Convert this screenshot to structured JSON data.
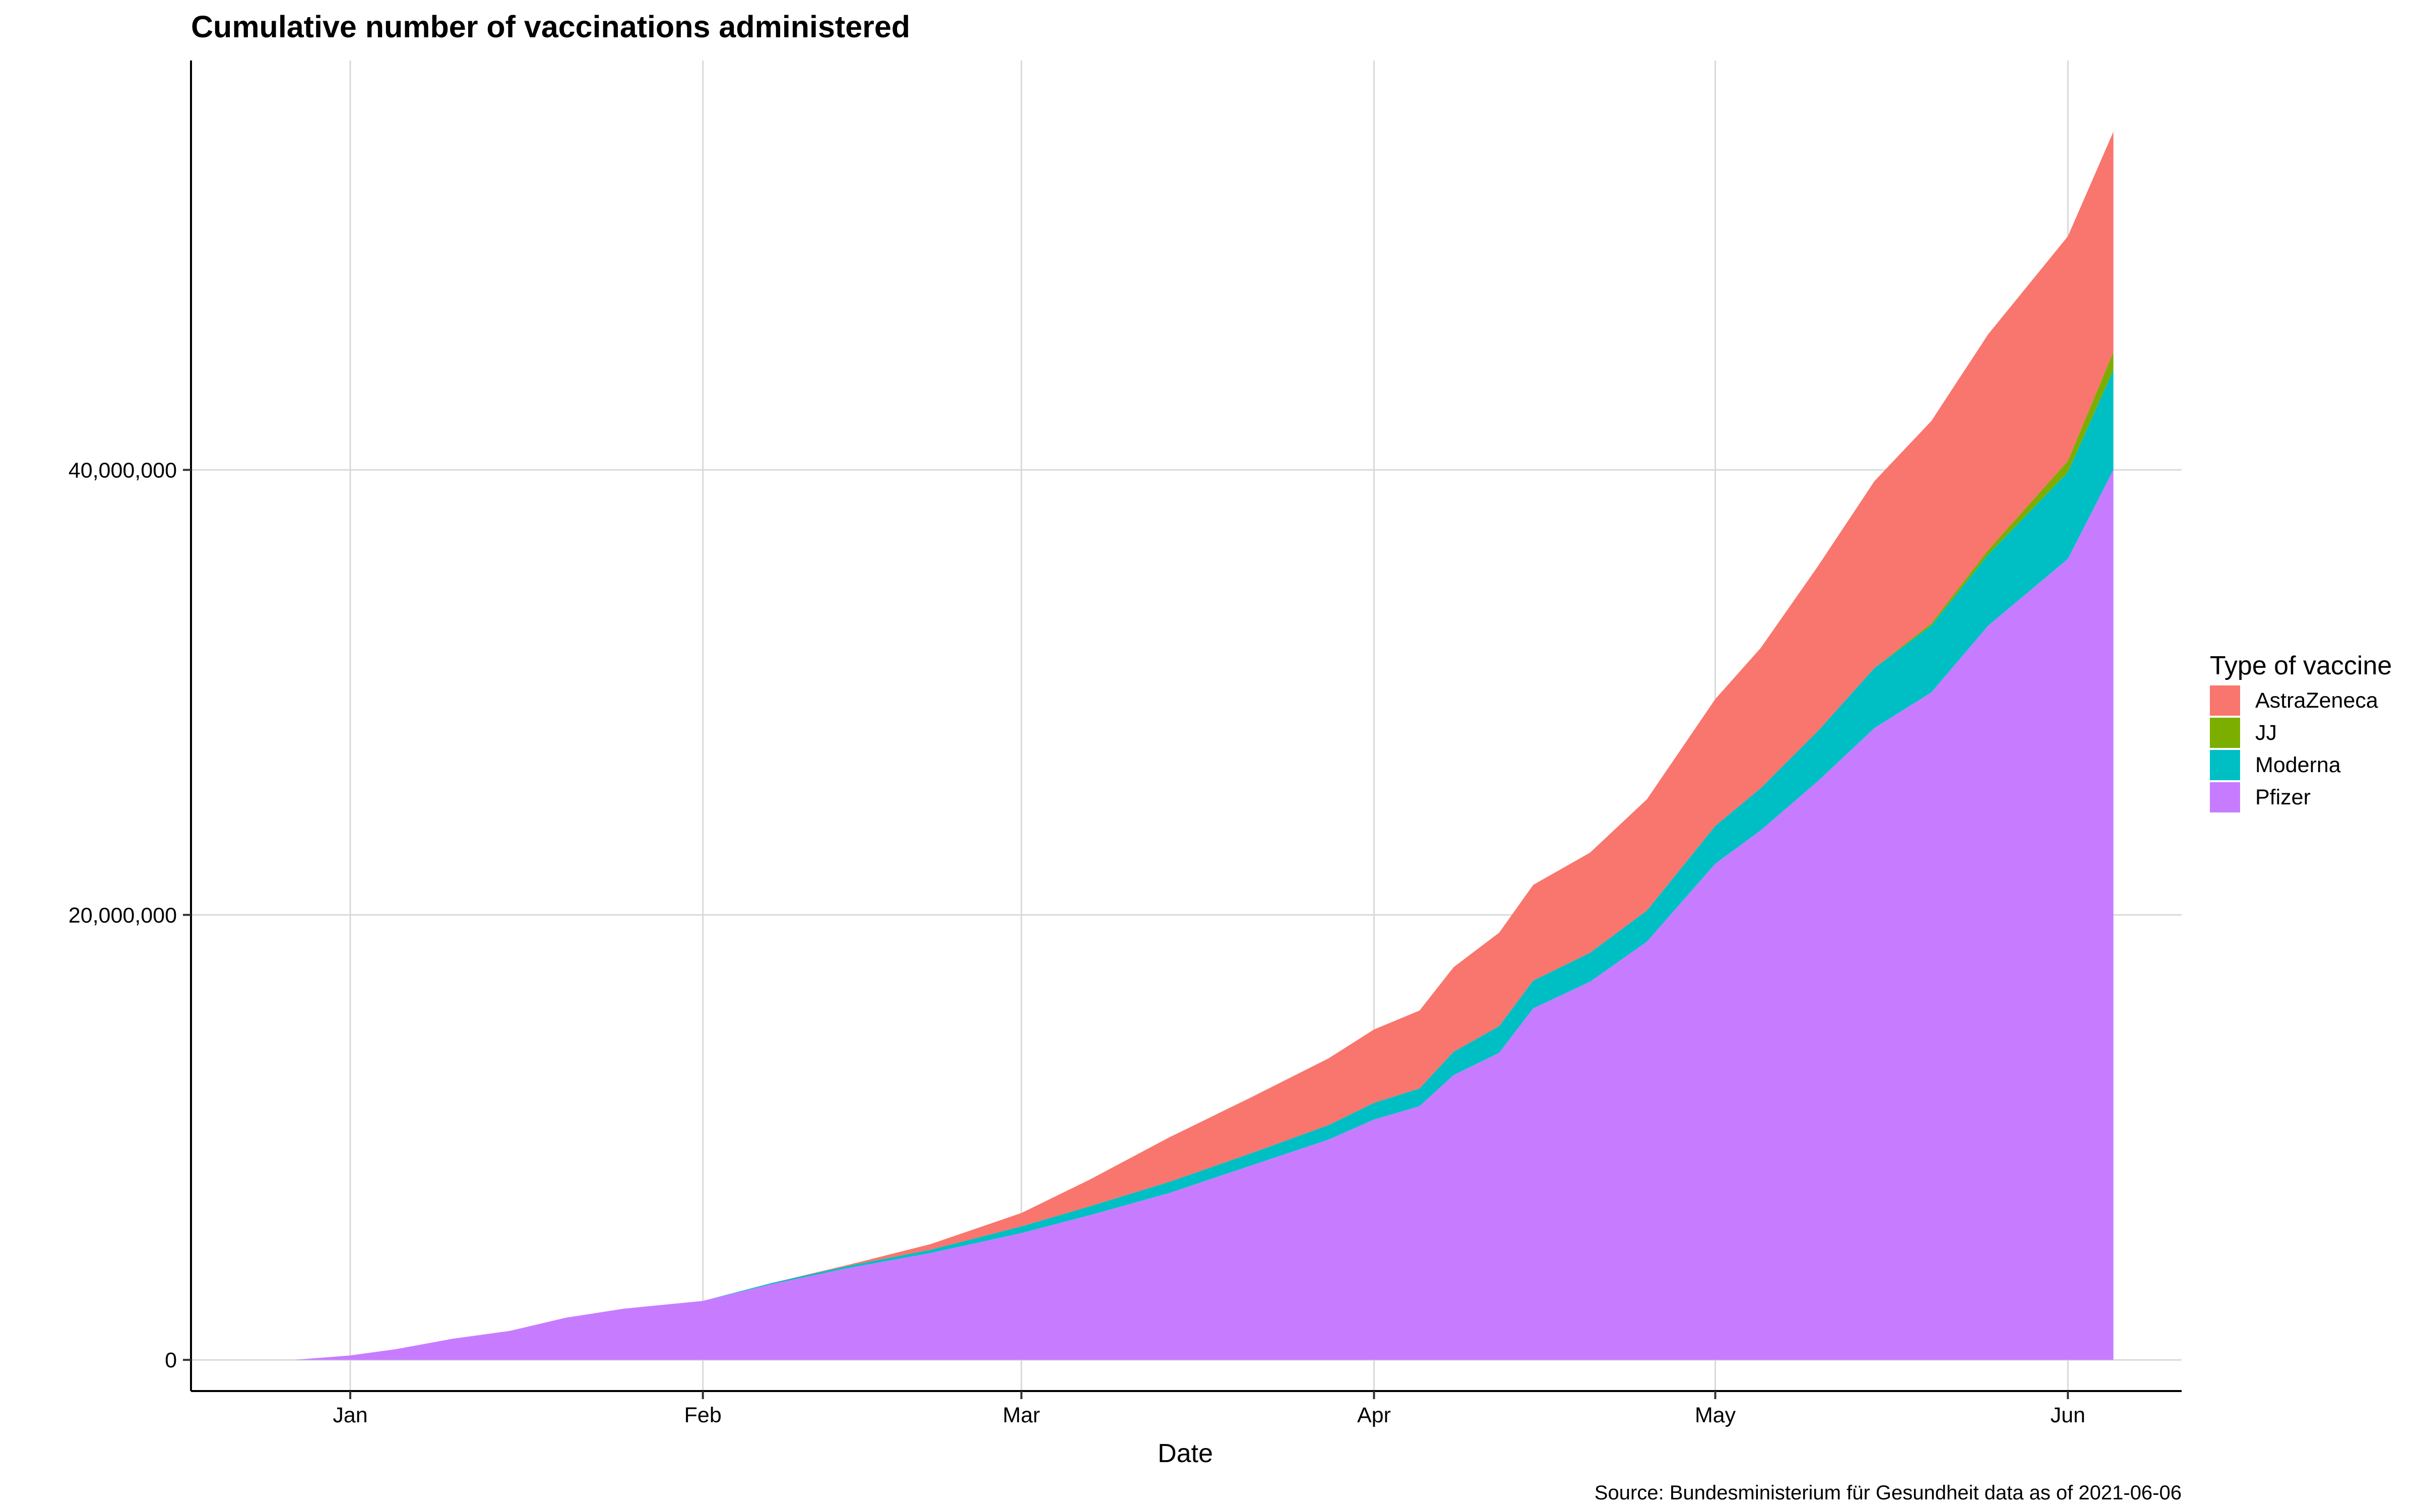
{
  "chart_data": {
    "type": "area",
    "stacked": true,
    "title": "Cumulative number of vaccinations administered",
    "xlabel": "Date",
    "ylabel": "",
    "caption": "Source: Bundesministerium für Gesundheit data as of 2021-06-06",
    "x_range": [
      "2020-12-18",
      "2021-06-11"
    ],
    "ylim": [
      -1400000,
      58400000
    ],
    "x_ticks": [
      {
        "date": "2021-01-01",
        "label": "Jan"
      },
      {
        "date": "2021-02-01",
        "label": "Feb"
      },
      {
        "date": "2021-03-01",
        "label": "Mar"
      },
      {
        "date": "2021-04-01",
        "label": "Apr"
      },
      {
        "date": "2021-05-01",
        "label": "May"
      },
      {
        "date": "2021-06-01",
        "label": "Jun"
      }
    ],
    "y_ticks": [
      {
        "value": 0,
        "label": "0"
      },
      {
        "value": 20000000,
        "label": "20,000,000"
      },
      {
        "value": 40000000,
        "label": "40,000,000"
      }
    ],
    "grid": true,
    "legend": {
      "title": "Type of vaccine",
      "position": "right",
      "entries": [
        {
          "name": "AstraZeneca",
          "color": "#F8766D"
        },
        {
          "name": "JJ",
          "color": "#7CAE00"
        },
        {
          "name": "Moderna",
          "color": "#00BFC4"
        },
        {
          "name": "Pfizer",
          "color": "#C77CFF"
        }
      ]
    },
    "dates": [
      "2020-12-27",
      "2021-01-01",
      "2021-01-05",
      "2021-01-10",
      "2021-01-15",
      "2021-01-20",
      "2021-01-25",
      "2021-02-01",
      "2021-02-07",
      "2021-02-14",
      "2021-02-21",
      "2021-03-01",
      "2021-03-07",
      "2021-03-14",
      "2021-03-21",
      "2021-03-28",
      "2021-04-01",
      "2021-04-05",
      "2021-04-08",
      "2021-04-12",
      "2021-04-15",
      "2021-04-20",
      "2021-04-25",
      "2021-05-01",
      "2021-05-05",
      "2021-05-10",
      "2021-05-15",
      "2021-05-20",
      "2021-05-25",
      "2021-06-01",
      "2021-06-05"
    ],
    "series": [
      {
        "name": "Pfizer",
        "color": "#C77CFF",
        "values": [
          0,
          200000,
          480000,
          950000,
          1300000,
          1900000,
          2300000,
          2650000,
          3400000,
          4150000,
          4800000,
          5700000,
          6500000,
          7500000,
          8700000,
          9900000,
          10800000,
          11400000,
          12800000,
          13800000,
          15800000,
          17000000,
          18800000,
          22300000,
          23800000,
          26000000,
          28400000,
          30000000,
          33000000,
          36000000,
          40000000
        ]
      },
      {
        "name": "Moderna",
        "color": "#00BFC4",
        "values": [
          0,
          0,
          0,
          0,
          0,
          0,
          0,
          0,
          50000,
          100000,
          150000,
          300000,
          400000,
          500000,
          550000,
          650000,
          750000,
          800000,
          1050000,
          1200000,
          1250000,
          1300000,
          1400000,
          1700000,
          1900000,
          2250000,
          2700000,
          3000000,
          3200000,
          3900000,
          4500000
        ]
      },
      {
        "name": "JJ",
        "color": "#7CAE00",
        "values": [
          0,
          0,
          0,
          0,
          0,
          0,
          0,
          0,
          0,
          0,
          0,
          0,
          0,
          0,
          0,
          0,
          0,
          0,
          0,
          0,
          0,
          0,
          0,
          0,
          0,
          0,
          0,
          100000,
          200000,
          500000,
          800000
        ]
      },
      {
        "name": "AstraZeneca",
        "color": "#F8766D",
        "values": [
          0,
          0,
          0,
          0,
          0,
          0,
          0,
          0,
          0,
          50000,
          250000,
          600000,
          1200000,
          2000000,
          2500000,
          3000000,
          3300000,
          3500000,
          3800000,
          4200000,
          4300000,
          4500000,
          5000000,
          5700000,
          6300000,
          7400000,
          8400000,
          9100000,
          9700000,
          10100000,
          9900000
        ]
      }
    ]
  }
}
